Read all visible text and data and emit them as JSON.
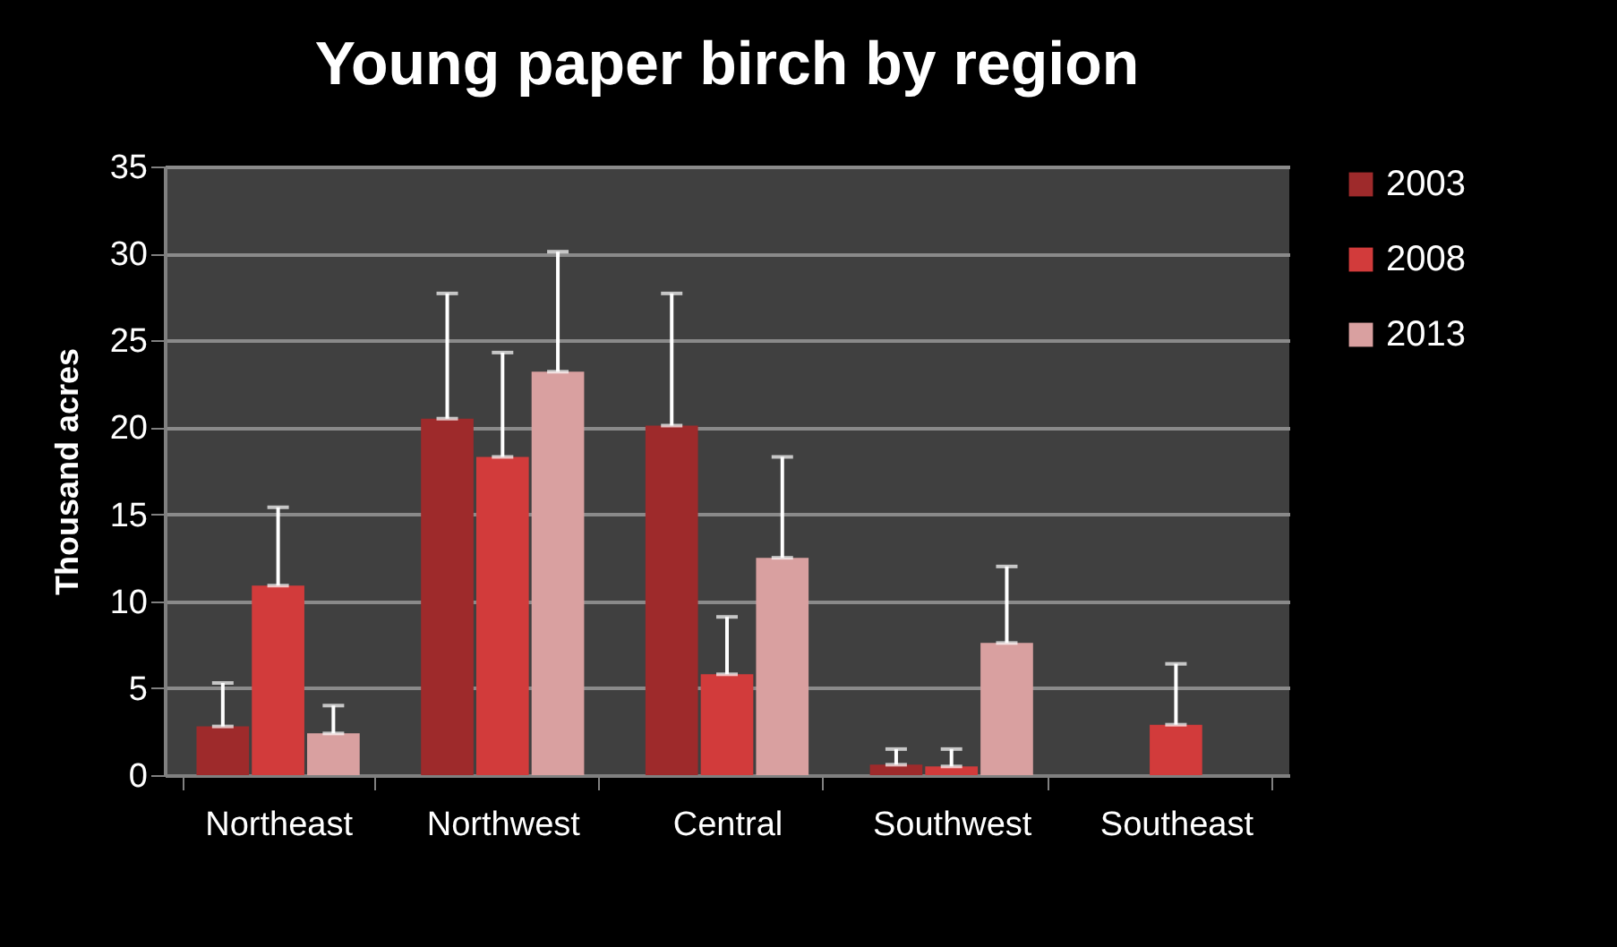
{
  "chart_data": {
    "type": "bar",
    "title": "Young paper birch by region",
    "ylabel": "Thousand acres",
    "categories": [
      "Northeast",
      "Northwest",
      "Central",
      "Southwest",
      "Southeast"
    ],
    "series": [
      {
        "name": "2003",
        "color": "#9e2a2b",
        "values": [
          2.8,
          20.5,
          20.1,
          0.6,
          null
        ],
        "errors": [
          [
            2.8,
            5.3
          ],
          [
            20.5,
            27.7
          ],
          [
            20.1,
            27.7
          ],
          [
            0.6,
            1.5
          ],
          null
        ]
      },
      {
        "name": "2008",
        "color": "#d23b3b",
        "values": [
          10.9,
          18.3,
          5.8,
          0.5,
          2.9
        ],
        "errors": [
          [
            10.9,
            15.4
          ],
          [
            18.3,
            24.3
          ],
          [
            5.8,
            9.1
          ],
          [
            0.5,
            1.5
          ],
          [
            2.9,
            6.4
          ]
        ]
      },
      {
        "name": "2013",
        "color": "#d9a0a0",
        "values": [
          2.4,
          23.2,
          12.5,
          7.6,
          null
        ],
        "errors": [
          [
            2.4,
            4.0
          ],
          [
            23.2,
            30.1
          ],
          [
            12.5,
            18.3
          ],
          [
            7.6,
            12.0
          ],
          null
        ]
      }
    ],
    "ylim": [
      0,
      35
    ],
    "yticks": [
      0,
      5,
      10,
      15,
      20,
      25,
      30,
      35
    ],
    "grid": "y",
    "legend": "right"
  }
}
